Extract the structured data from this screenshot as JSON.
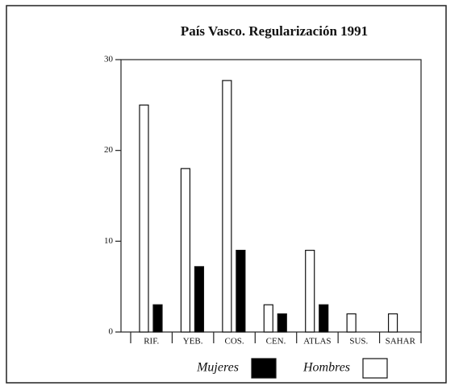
{
  "chart_data": {
    "type": "bar",
    "title": "País Vasco. Regularización 1991",
    "categories": [
      "RIF.",
      "YEB.",
      "COS.",
      "CEN.",
      "ATLAS",
      "SUS.",
      "SAHAR"
    ],
    "series": [
      {
        "name": "Hombres",
        "color": "#ffffff",
        "values": [
          25,
          18,
          27.7,
          3,
          9,
          2,
          2
        ]
      },
      {
        "name": "Mujeres",
        "color": "#000000",
        "values": [
          3,
          7.2,
          9,
          2,
          3,
          0,
          0
        ]
      }
    ],
    "ylim": [
      0,
      30
    ],
    "yticks": [
      0,
      10,
      20,
      30
    ],
    "grid": false,
    "legend": "bottom"
  }
}
